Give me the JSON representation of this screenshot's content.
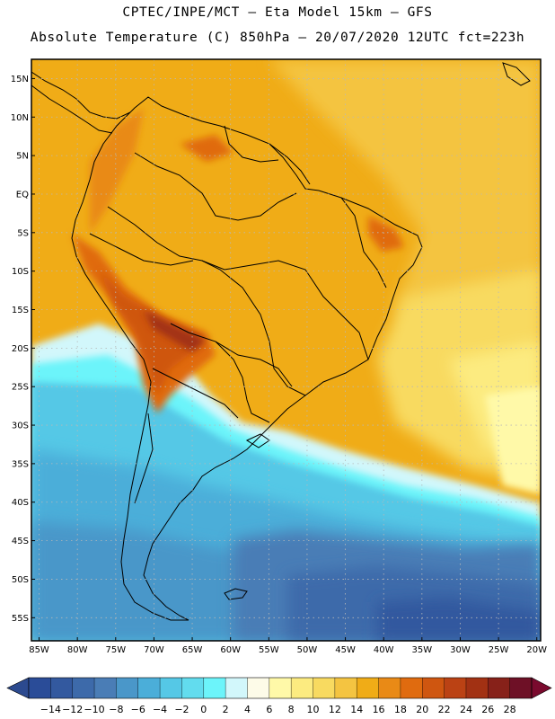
{
  "header": {
    "title_line1": "CPTEC/INPE/MCT –  Eta Model 15km – GFS",
    "title_line2": "Absolute Temperature (C) 850hPa – 20/07/2020 12UTC fct=223h"
  },
  "map": {
    "lat_labels": [
      "15N",
      "10N",
      "5N",
      "EQ",
      "5S",
      "10S",
      "15S",
      "20S",
      "25S",
      "30S",
      "35S",
      "40S",
      "45S",
      "50S",
      "55S"
    ],
    "lat_values": [
      15,
      10,
      5,
      0,
      -5,
      -10,
      -15,
      -20,
      -25,
      -30,
      -35,
      -40,
      -45,
      -50,
      -55
    ],
    "lon_labels": [
      "85W",
      "80W",
      "75W",
      "70W",
      "65W",
      "60W",
      "55W",
      "50W",
      "45W",
      "40W",
      "35W",
      "30W",
      "25W",
      "20W"
    ],
    "lon_values": [
      -85,
      -80,
      -75,
      -70,
      -65,
      -60,
      -55,
      -50,
      -45,
      -40,
      -35,
      -30,
      -25,
      -20
    ],
    "lat_range": [
      -58,
      17.5
    ],
    "lon_range": [
      -86,
      -19.5
    ]
  },
  "colorbar": {
    "labels": [
      "-14",
      "-12",
      "-10",
      "-8",
      "-6",
      "-4",
      "-2",
      "0",
      "2",
      "4",
      "6",
      "8",
      "10",
      "12",
      "14",
      "16",
      "18",
      "20",
      "22",
      "24",
      "26",
      "28"
    ],
    "colors": [
      "#2a4c98",
      "#33599f",
      "#3d6aaa",
      "#4a7db6",
      "#4a97c9",
      "#4baed9",
      "#55c8e6",
      "#62dcee",
      "#6cf4fa",
      "#d2f7fb",
      "#fdfbe8",
      "#fff9a8",
      "#fceb80",
      "#f8da60",
      "#f4c441",
      "#f0ac17",
      "#e98a16",
      "#e06b0f",
      "#cf5610",
      "#bb4214",
      "#a23113",
      "#872119",
      "#6e1026"
    ],
    "under_color": "#2c4a8f",
    "over_color": "#7a0a2e"
  }
}
